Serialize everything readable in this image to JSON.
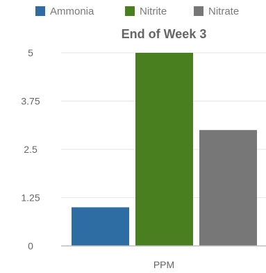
{
  "chart_data": {
    "type": "bar",
    "title": "End of Week 3",
    "xlabel": "PPM",
    "ylabel": "",
    "categories": [
      "PPM"
    ],
    "series": [
      {
        "name": "Ammonia",
        "values": [
          1
        ],
        "color": "#2e6da4"
      },
      {
        "name": "Nitrite",
        "values": [
          5
        ],
        "color": "#4a7f1f"
      },
      {
        "name": "Nitrate",
        "values": [
          3
        ],
        "color": "#777777"
      }
    ],
    "ylim": [
      0,
      5
    ],
    "yticks": [
      "0",
      "1.25",
      "2.5",
      "3.75",
      "5"
    ],
    "grid": true,
    "legend_position": "top"
  }
}
